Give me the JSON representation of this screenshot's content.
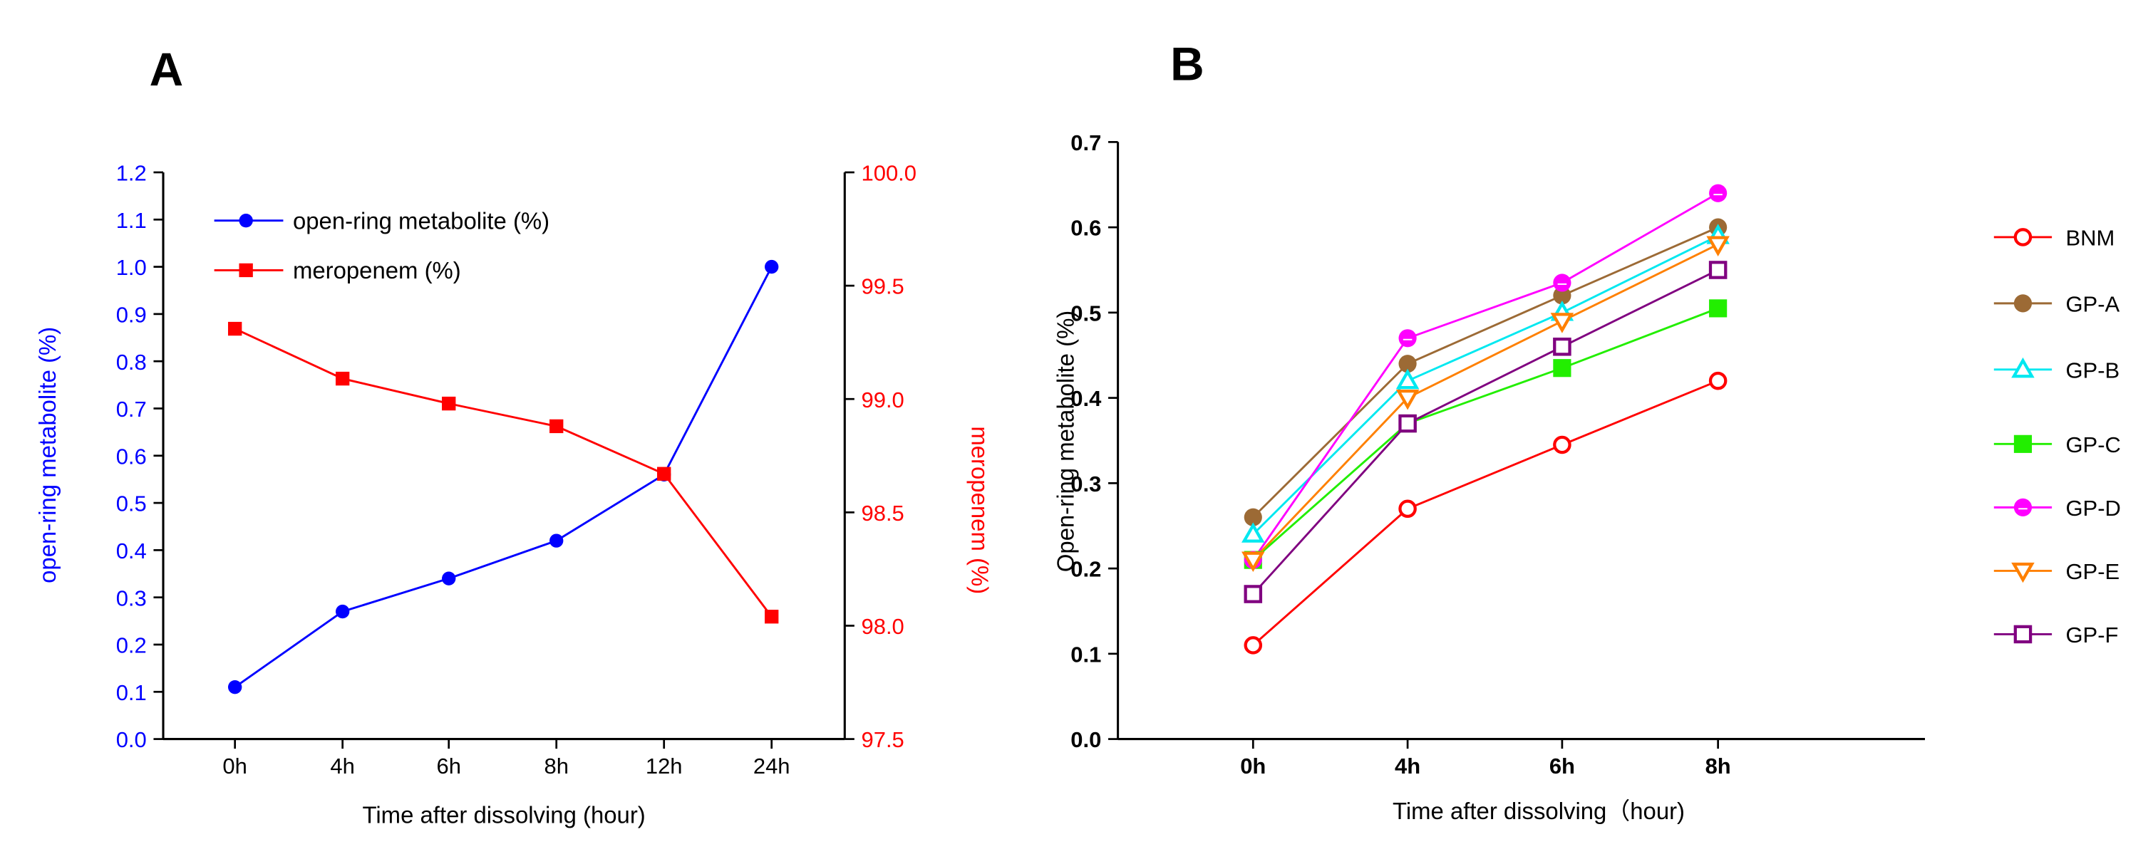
{
  "colors": {
    "blue": "#0000ff",
    "red": "#ff0000",
    "axis": "#000000"
  },
  "chart_data": [
    {
      "panel_label": "A",
      "type": "line",
      "categories": [
        "0h",
        "4h",
        "6h",
        "8h",
        "12h",
        "24h"
      ],
      "xlabel": "Time after dissolving (hour)",
      "ylabel": "open-ring metabolite (%)",
      "ylabel_right": "meropenem (%)",
      "ylim": [
        0,
        1.2
      ],
      "yticks": [
        "0.0",
        "0.1",
        "0.2",
        "0.3",
        "0.4",
        "0.5",
        "0.6",
        "0.7",
        "0.8",
        "0.9",
        "1.0",
        "1.1",
        "1.2"
      ],
      "ylim_right": [
        97.5,
        100.0
      ],
      "yticks_right": [
        "97.5",
        "98.0",
        "98.5",
        "99.0",
        "99.5",
        "100.0"
      ],
      "legend_position": "top-left",
      "series": [
        {
          "name": "open-ring metabolite (%)",
          "axis": "left",
          "color": "#0000ff",
          "marker": "circle-filled",
          "values": [
            0.11,
            0.27,
            0.34,
            0.42,
            0.56,
            1.0
          ]
        },
        {
          "name": "meropenem (%)",
          "axis": "right",
          "color": "#ff0000",
          "marker": "square-filled",
          "values": [
            99.31,
            99.09,
            98.98,
            98.88,
            98.67,
            98.04
          ]
        }
      ]
    },
    {
      "panel_label": "B",
      "type": "line",
      "categories": [
        "0h",
        "4h",
        "6h",
        "8h"
      ],
      "xlabel": "Time after dissolving（hour)",
      "ylabel": "Open-ring metabolite (%)",
      "ylim": [
        0,
        0.7
      ],
      "yticks": [
        "0.0",
        "0.1",
        "0.2",
        "0.3",
        "0.4",
        "0.5",
        "0.6",
        "0.7"
      ],
      "legend_position": "right",
      "series": [
        {
          "name": "BNM",
          "color": "#ff0000",
          "marker": "circle-open",
          "values": [
            0.11,
            0.27,
            0.345,
            0.42
          ]
        },
        {
          "name": "GP-A",
          "color": "#9c6a35",
          "marker": "circle-filled",
          "values": [
            0.26,
            0.44,
            0.52,
            0.6
          ]
        },
        {
          "name": "GP-B",
          "color": "#00e8f0",
          "marker": "triangle-open",
          "values": [
            0.24,
            0.42,
            0.5,
            0.59
          ]
        },
        {
          "name": "GP-C",
          "color": "#22ee00",
          "marker": "square-filled",
          "values": [
            0.21,
            0.37,
            0.435,
            0.505
          ]
        },
        {
          "name": "GP-D",
          "color": "#ff00ff",
          "marker": "circle-half",
          "values": [
            0.21,
            0.47,
            0.535,
            0.64
          ]
        },
        {
          "name": "GP-E",
          "color": "#ff8000",
          "marker": "triangle-down-open",
          "values": [
            0.21,
            0.4,
            0.49,
            0.58
          ]
        },
        {
          "name": "GP-F",
          "color": "#800080",
          "marker": "square-open",
          "values": [
            0.17,
            0.37,
            0.46,
            0.55
          ]
        }
      ]
    }
  ]
}
